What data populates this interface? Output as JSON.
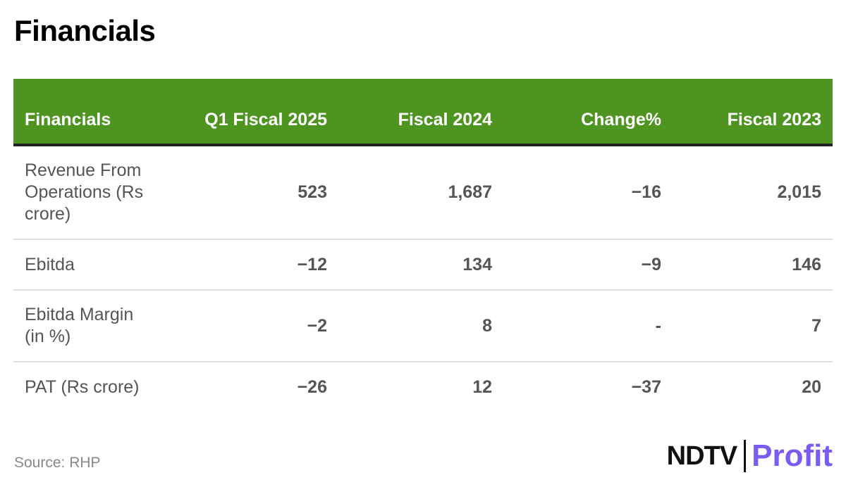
{
  "title": "Financials",
  "colors": {
    "header_bg": "#4e9420",
    "header_text": "#ffffff",
    "profit_accent": "#7a5cf0"
  },
  "chart_data": {
    "type": "table",
    "columns": [
      "Financials",
      "Q1 Fiscal 2025",
      "Fiscal 2024",
      "Change%",
      "Fiscal 2023"
    ],
    "rows": [
      {
        "label": "Revenue From Operations (Rs crore)",
        "values": [
          "523",
          "1,687",
          "−16",
          "2,015"
        ]
      },
      {
        "label": "Ebitda",
        "values": [
          "−12",
          "134",
          "−9",
          "146"
        ]
      },
      {
        "label": "Ebitda Margin (in %)",
        "values": [
          "−2",
          "8",
          "-",
          "7"
        ]
      },
      {
        "label": "PAT (Rs crore)",
        "values": [
          "−26",
          "12",
          "−37",
          "20"
        ]
      }
    ]
  },
  "source": "Source: RHP",
  "logo": {
    "brand": "NDTV",
    "product": "Profit",
    "icon": "ndtv-profit-logo"
  }
}
